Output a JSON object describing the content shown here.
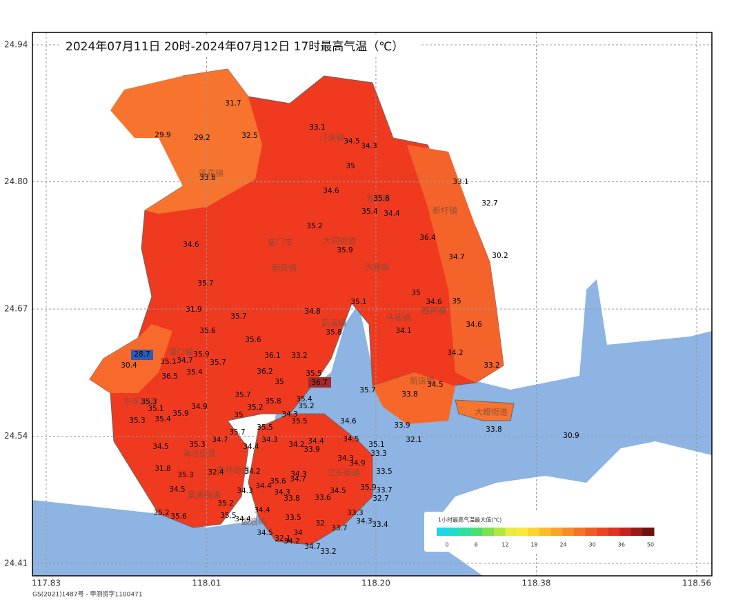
{
  "header": {
    "title": "2024年07月11日 20时-2024年07月12日 17时最高气温（℃）"
  },
  "axes": {
    "xlim": [
      117.83,
      118.56
    ],
    "xticks": [
      117.83,
      118.01,
      {
        "value": 118.2,
        "label": "118.20"
      },
      118.38,
      118.56
    ],
    "ylim": [
      24.41,
      24.94
    ],
    "yticks": [
      24.94,
      {
        "value": 24.8,
        "label": "24.80"
      },
      24.67,
      24.54,
      24.41
    ]
  },
  "places": [
    "莲花镇",
    "汀溪镇",
    "五显镇",
    "新圩镇",
    "厦门市",
    "大同街道",
    "新民镇",
    "洪塘镇",
    "后溪镇",
    "马巷镇",
    "西柯镇",
    "灌口镇",
    "新店镇",
    "大嶝街道",
    "东孚街道",
    "海沧街道",
    "杏林街道",
    "集美街道",
    "江头街道",
    "鼓浪屿"
  ],
  "stations": [
    31.7,
    29.9,
    29.2,
    32.5,
    33.1,
    34.5,
    34.3,
    35,
    33.8,
    33.1,
    34.6,
    35.8,
    35.4,
    34.4,
    32.7,
    35.2,
    36.4,
    34.6,
    35.9,
    34.7,
    30.2,
    35.7,
    35,
    34.6,
    35,
    35.1,
    34.8,
    31.9,
    35.7,
    34.6,
    35.6,
    35.8,
    34.1,
    35.6,
    28.7,
    30.4,
    35.1,
    34.7,
    35.9,
    35.7,
    36.1,
    33.2,
    34.2,
    33.2,
    36.2,
    36.5,
    35.4,
    35.5,
    36.7,
    35,
    34.5,
    33.8,
    35.7,
    35.7,
    35.3,
    35.8,
    35.4,
    35.1,
    34.9,
    35.2,
    35.2,
    35.9,
    35,
    34.3,
    35.3,
    35.4,
    35.5,
    34.6,
    33.9,
    32.1,
    35.7,
    35.5,
    34.3,
    34.7,
    34.5,
    35.3,
    34.4,
    34.2,
    33.9,
    34.5,
    35.1,
    34.4,
    34.3,
    33.3,
    34.9,
    31.8,
    35.3,
    32.4,
    34.2,
    34.3,
    33.5,
    35.6,
    34.7,
    34.4,
    34.5,
    34.3,
    34.3,
    35.9,
    33.7,
    34.5,
    33.8,
    33.6,
    32.7,
    35.2,
    34.4,
    35.2,
    35.6,
    35.5,
    33.3,
    33.5,
    34.4,
    34.3,
    33.4,
    32,
    33.7,
    34.5,
    34,
    32.1,
    34.2,
    34.7,
    33.2,
    30.9,
    33.8
  ],
  "legend": {
    "title": "1小时最高气温最大值(℃)",
    "ticks": [
      0,
      6,
      12,
      18,
      24,
      30,
      36,
      50
    ]
  },
  "footer": {
    "note": "GS(2021)1487号 - 甲测资字1100471"
  }
}
